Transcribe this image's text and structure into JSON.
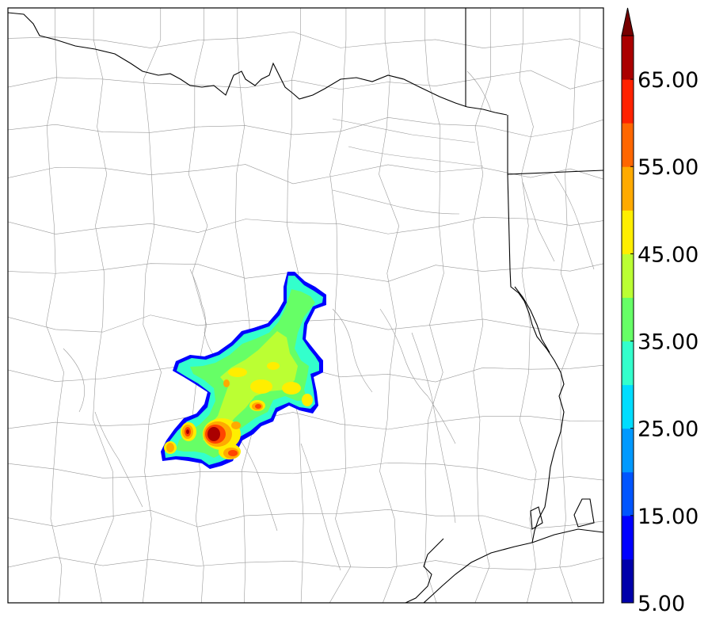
{
  "colorbar": {
    "ticks": [
      "5.00",
      "15.00",
      "25.00",
      "35.00",
      "45.00",
      "55.00",
      "65.00"
    ],
    "tick_values": [
      5,
      15,
      25,
      35,
      45,
      55,
      65
    ],
    "min": 5,
    "max": 70,
    "step": 5,
    "extend": "max",
    "colors": [
      "#0000aa",
      "#0000ff",
      "#0055ff",
      "#0099ff",
      "#00ddff",
      "#33ffcc",
      "#66ff66",
      "#bbff33",
      "#ffee00",
      "#ffaa00",
      "#ff6600",
      "#ff2200",
      "#aa0000"
    ],
    "extend_color": "#770000"
  },
  "map": {
    "region": "East/Central Texas with county boundaries",
    "shaded_field_range": [
      5,
      70
    ],
    "colors": {
      "state_line": "#000000",
      "county_line": "#9a9a9a",
      "frame": "#000000"
    }
  }
}
